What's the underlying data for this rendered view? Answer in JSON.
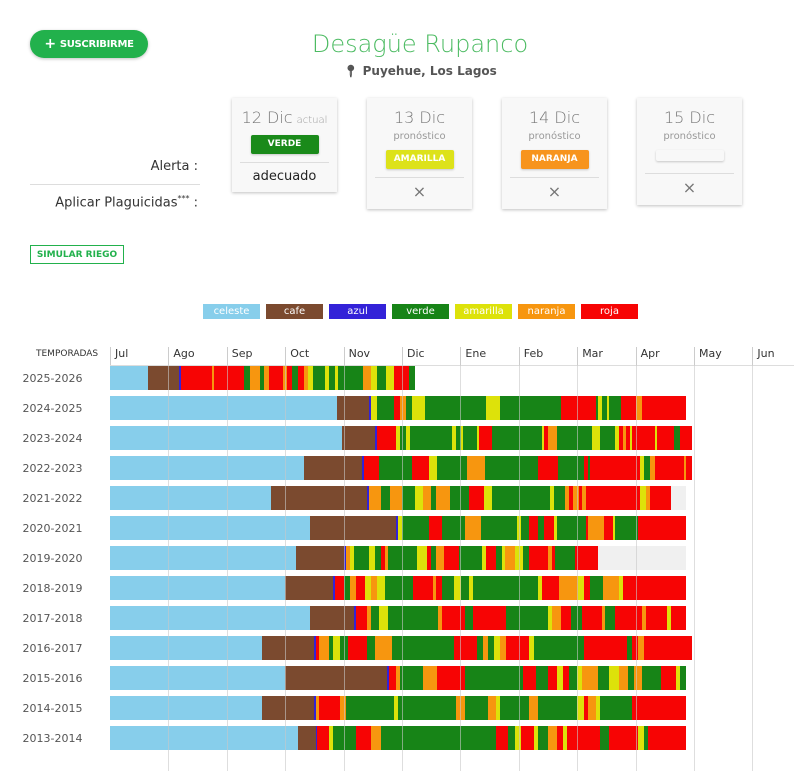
{
  "header": {
    "subscribe_label": "SUSCRIBIRME",
    "title": "Desagüe Rupanco",
    "location": "Puyehue, Los Lagos"
  },
  "labels": {
    "alerta": "Alerta :",
    "plaguicidas": "Aplicar Plaguicidas",
    "plaguicidas_sup": "***",
    "colon": ":"
  },
  "cards": [
    {
      "date": "12 Dic",
      "tag": "actual",
      "badge": "VERDE",
      "badge_color": "#1a8a1a",
      "value": "adecuado"
    },
    {
      "date": "13 Dic",
      "sub": "pronóstico",
      "badge": "AMARILLA",
      "badge_color": "#dde21a",
      "value": "×"
    },
    {
      "date": "14 Dic",
      "sub": "pronóstico",
      "badge": "NARANJA",
      "badge_color": "#f7941d",
      "value": "×"
    },
    {
      "date": "15 Dic",
      "sub": "pronóstico",
      "badge": "",
      "badge_color": "#f8f8f8",
      "value": "×"
    }
  ],
  "simular_label": "SIMULAR RIEGO",
  "chart_data": {
    "type": "timeline",
    "header": "TEMPORADAS",
    "months": [
      "Jul",
      "Ago",
      "Sep",
      "Oct",
      "Nov",
      "Dic",
      "Ene",
      "Feb",
      "Mar",
      "Apr",
      "May",
      "Jun"
    ],
    "legend": [
      {
        "code": "C",
        "name": "celeste",
        "color": "#87ceeb"
      },
      {
        "code": "K",
        "name": "cafe",
        "color": "#7b4a2f"
      },
      {
        "code": "A",
        "name": "azul",
        "color": "#3322d8"
      },
      {
        "code": "V",
        "name": "verde",
        "color": "#178417"
      },
      {
        "code": "Y",
        "name": "amarilla",
        "color": "#dde20a"
      },
      {
        "code": "N",
        "name": "naranja",
        "color": "#f7960f"
      },
      {
        "code": "R",
        "name": "roja",
        "color": "#f70404"
      }
    ],
    "nodata_color": "#f0f0f0",
    "seasons": [
      {
        "label": "2025-2026",
        "segments": "C20 K16 A1 R16 N1 R16 V3 N5 V2 N3 R7 N2 R3 V3 R3 N2 Y3 V6 Y2 V3 Y2 V13 N4 Y3 V5 Y4 R8 V3"
      },
      {
        "label": "2024-2025",
        "segments": "C118 K17 A1 Y3 V9 R3 N3 V3 Y7 V32 Y7 V32 R18 V1 Y2 V3 Y1 V6 R8 N3 R23"
      },
      {
        "label": "2023-2024",
        "segments": "C121 K17 A1 R10 Y2 V3 Y2 V22 Y2 V3 Y1 V7 Y1 R7 V26 Y1 R2 N5 V18 Y4 V8 Y2 R2 N2 R2 Y1 R12 Y1 R9 V3 R6"
      },
      {
        "label": "2022-2023",
        "segments": "C101 K30 A1 R8 V17 R9 Y4 V16 N9 V28 R10 V14 R2 V1 R26 Y2 V3 N3 R15 N1 R3"
      },
      {
        "label": "2021-2022",
        "segments": "C84 K50 A1 N6 V5 N6 V7 Y4 N4 V3 N7 V10 R8 Y4 V30 Y2 V6 N2 R2 N3 R2 N2 R28 Y3 N2 R11 G8"
      },
      {
        "label": "2020-2021",
        "segments": "C104 K45 A1 Y2 V14 R7 V12 N8 V19 Y2 V4 R5 V3 R5 Y2 V15 R1 N8 R5 Y1 V12 R5 R20"
      },
      {
        "label": "2019-2020",
        "segments": "C97 K25 A1 N2 Y2 V8 Y3 V3 R2 N2 V15 Y5 R2 V3 N4 R8 V12 Y2 R5 V3 Y2 N5 Y4 V3 R10 N2 R2 V10 R12 G46"
      },
      {
        "label": "2018-2019",
        "segments": "C91 K25 A1 R5 V3 N3 R5 Y3 N3 Y4 V15 R10 N2 R3 V6 Y4 V4 Y2 V20 V14 Y2 R9 N10 Y3 R3 V7 N8 Y2 R33"
      },
      {
        "label": "2017-2018",
        "segments": "C104 K23 A1 R6 N2 V4 Y5 V26 N2 R12 V4 R5 R12 V22 Y2 N5 R5 V6 R10 N2 V5 R14 N2 R11 Y2 R8"
      },
      {
        "label": "2016-2017",
        "segments": "C79 K27 A1 R2 N5 V2 Y4 V4 R10 V4 N9 V32 R12 V3 N3 V3 Y3 N3 R12 Y3 V26 R22 V3 R3 N3 R25"
      },
      {
        "label": "2015-2016",
        "segments": "C91 K53 A1 R4 N2 V12 N7 R3 R12 V30 R7 V6 R5 Y3 R3 V4 Y3 N8 V6 Y5 N5 V3 N4 V10 R8 Y2 V3"
      },
      {
        "label": "2014-2015",
        "segments": "C79 K27 A1 N2 R11 N3 V25 Y2 V30 N5 V12 N4 Y2 V15 N5 V20 Y4 R2 N4 Y2 V17 R28"
      },
      {
        "label": "2013-2014",
        "segments": "C98 K9 A1 R6 Y2 V12 R8 N5 V60 R6 V4 Y3 R7 Y2 V5 N5 R3 Y2 R5 R12 V5 R3 R12 Y3 V2 R20"
      }
    ]
  }
}
